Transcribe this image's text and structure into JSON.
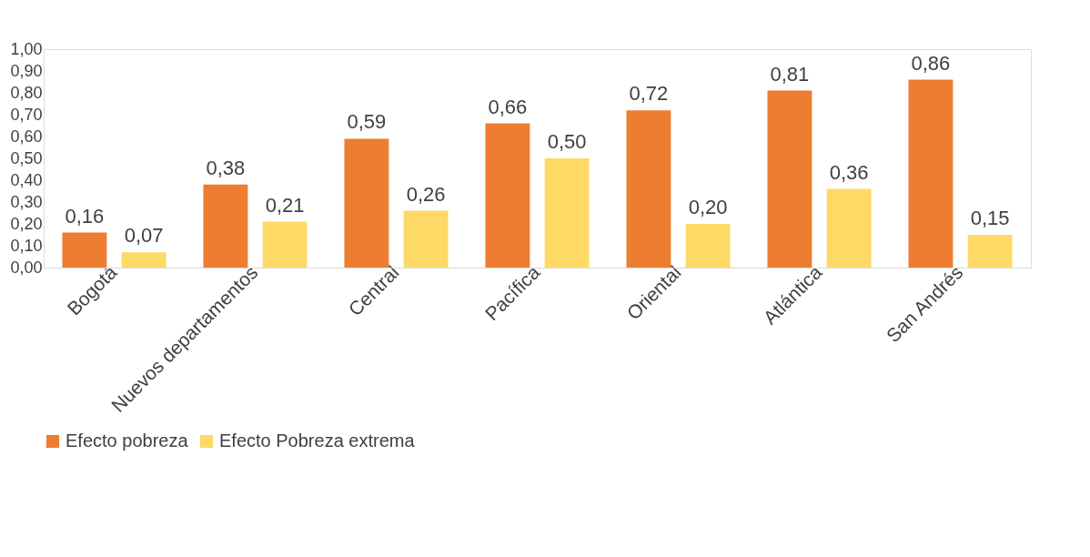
{
  "chart_data": {
    "type": "bar",
    "categories": [
      "Bogotá",
      "Nuevos departamentos",
      "Central",
      "Pacífica",
      "Oriental",
      "Atlántica",
      "San Andrés"
    ],
    "series": [
      {
        "name": "Efecto pobreza",
        "color": "#ed7d31",
        "values": [
          0.16,
          0.38,
          0.59,
          0.66,
          0.72,
          0.81,
          0.86
        ],
        "value_labels": [
          "0,16",
          "0,38",
          "0,59",
          "0,66",
          "0,72",
          "0,81",
          "0,86"
        ]
      },
      {
        "name": "Efecto Pobreza extrema",
        "color": "#ffd966",
        "values": [
          0.07,
          0.21,
          0.26,
          0.5,
          0.2,
          0.36,
          0.15
        ],
        "value_labels": [
          "0,07",
          "0,21",
          "0,26",
          "0,50",
          "0,20",
          "0,36",
          "0,15"
        ]
      }
    ],
    "ylim": [
      0,
      1
    ],
    "yticks": [
      {
        "value": 0,
        "label": "0,00"
      },
      {
        "value": 0.1,
        "label": "0,10"
      },
      {
        "value": 0.2,
        "label": "0,20"
      },
      {
        "value": 0.3,
        "label": "0,30"
      },
      {
        "value": 0.4,
        "label": "0,40"
      },
      {
        "value": 0.5,
        "label": "0,50"
      },
      {
        "value": 0.6,
        "label": "0,60"
      },
      {
        "value": 0.7,
        "label": "0,70"
      },
      {
        "value": 0.8,
        "label": "0,80"
      },
      {
        "value": 0.9,
        "label": "0,90"
      },
      {
        "value": 1,
        "label": "1,00"
      }
    ],
    "grid": false,
    "legend": "bottom"
  }
}
